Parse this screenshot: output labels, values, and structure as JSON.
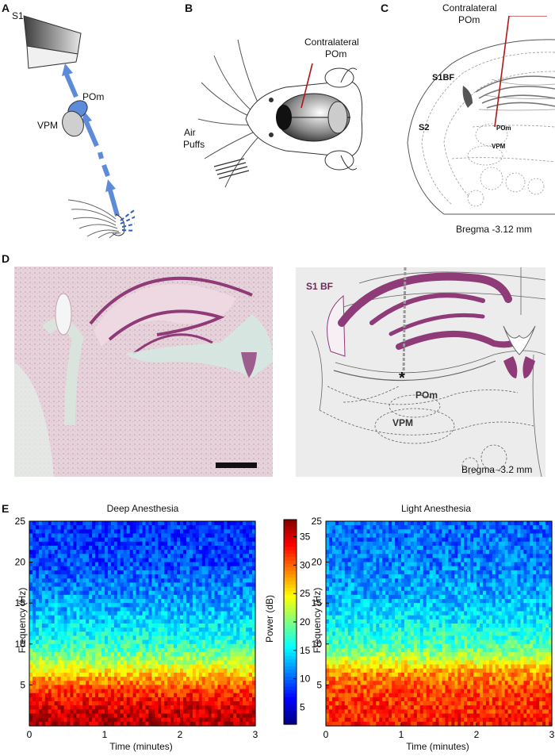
{
  "panels": {
    "a": {
      "letter": "A",
      "s1": "S1",
      "pom": "POm",
      "vpm": "VPM"
    },
    "b": {
      "letter": "B",
      "contralateral": "Contralateral",
      "pom": "POm",
      "air": "Air",
      "puffs": "Puffs"
    },
    "c": {
      "letter": "C",
      "contralateral": "Contralateral",
      "pom_title": "POm",
      "s1bf": "S1BF",
      "s2": "S2",
      "pom": "POm",
      "vpm": "VPM",
      "bregma": "Bregma -3.12 mm"
    },
    "d": {
      "letter": "D",
      "s1bf": "S1 BF",
      "pom": "POm",
      "vpm": "VPM",
      "bregma": "Bregma -3.2 mm",
      "asterisk": "*"
    },
    "e": {
      "letter": "E",
      "colorbar_label": "Power (dB)",
      "colorbar_ticks": [
        "35",
        "30",
        "25",
        "20",
        "15",
        "10",
        "5"
      ]
    }
  },
  "colors": {
    "arrow_blue": "#5b8bd9",
    "pom_red": "#b01818",
    "hist_purple": "#8e3b78"
  },
  "chart_data": [
    {
      "type": "heatmap",
      "title": "Deep Anesthesia",
      "xlabel": "Time (minutes)",
      "ylabel": "Frequency (Hz)",
      "xlim": [
        0,
        3
      ],
      "ylim": [
        0,
        25
      ],
      "xticks": [
        "0",
        "1",
        "2",
        "3"
      ],
      "yticks": [
        "5",
        "10",
        "15",
        "20",
        "25"
      ],
      "clim": [
        2,
        38
      ],
      "profile_freq_hz": [
        0,
        2,
        4,
        5,
        6,
        7,
        8,
        10,
        12,
        14,
        17,
        20,
        25
      ],
      "profile_power_db": [
        36,
        35,
        32,
        30,
        27,
        24,
        21,
        17,
        15,
        13,
        11,
        9,
        8
      ]
    },
    {
      "type": "heatmap",
      "title": "Light Anesthesia",
      "xlabel": "Time (minutes)",
      "ylabel": "Frequency (Hz)",
      "xlim": [
        0,
        3
      ],
      "ylim": [
        0,
        25
      ],
      "xticks": [
        "0",
        "1",
        "2",
        "3"
      ],
      "yticks": [
        "5",
        "10",
        "15",
        "20",
        "25"
      ],
      "clim": [
        2,
        38
      ],
      "profile_freq_hz": [
        0,
        2,
        4,
        6,
        7,
        8,
        9,
        10,
        12,
        14,
        17,
        20,
        25
      ],
      "profile_power_db": [
        33,
        32,
        31,
        29,
        27,
        23,
        20,
        18,
        16,
        14,
        12,
        11,
        10
      ]
    }
  ]
}
